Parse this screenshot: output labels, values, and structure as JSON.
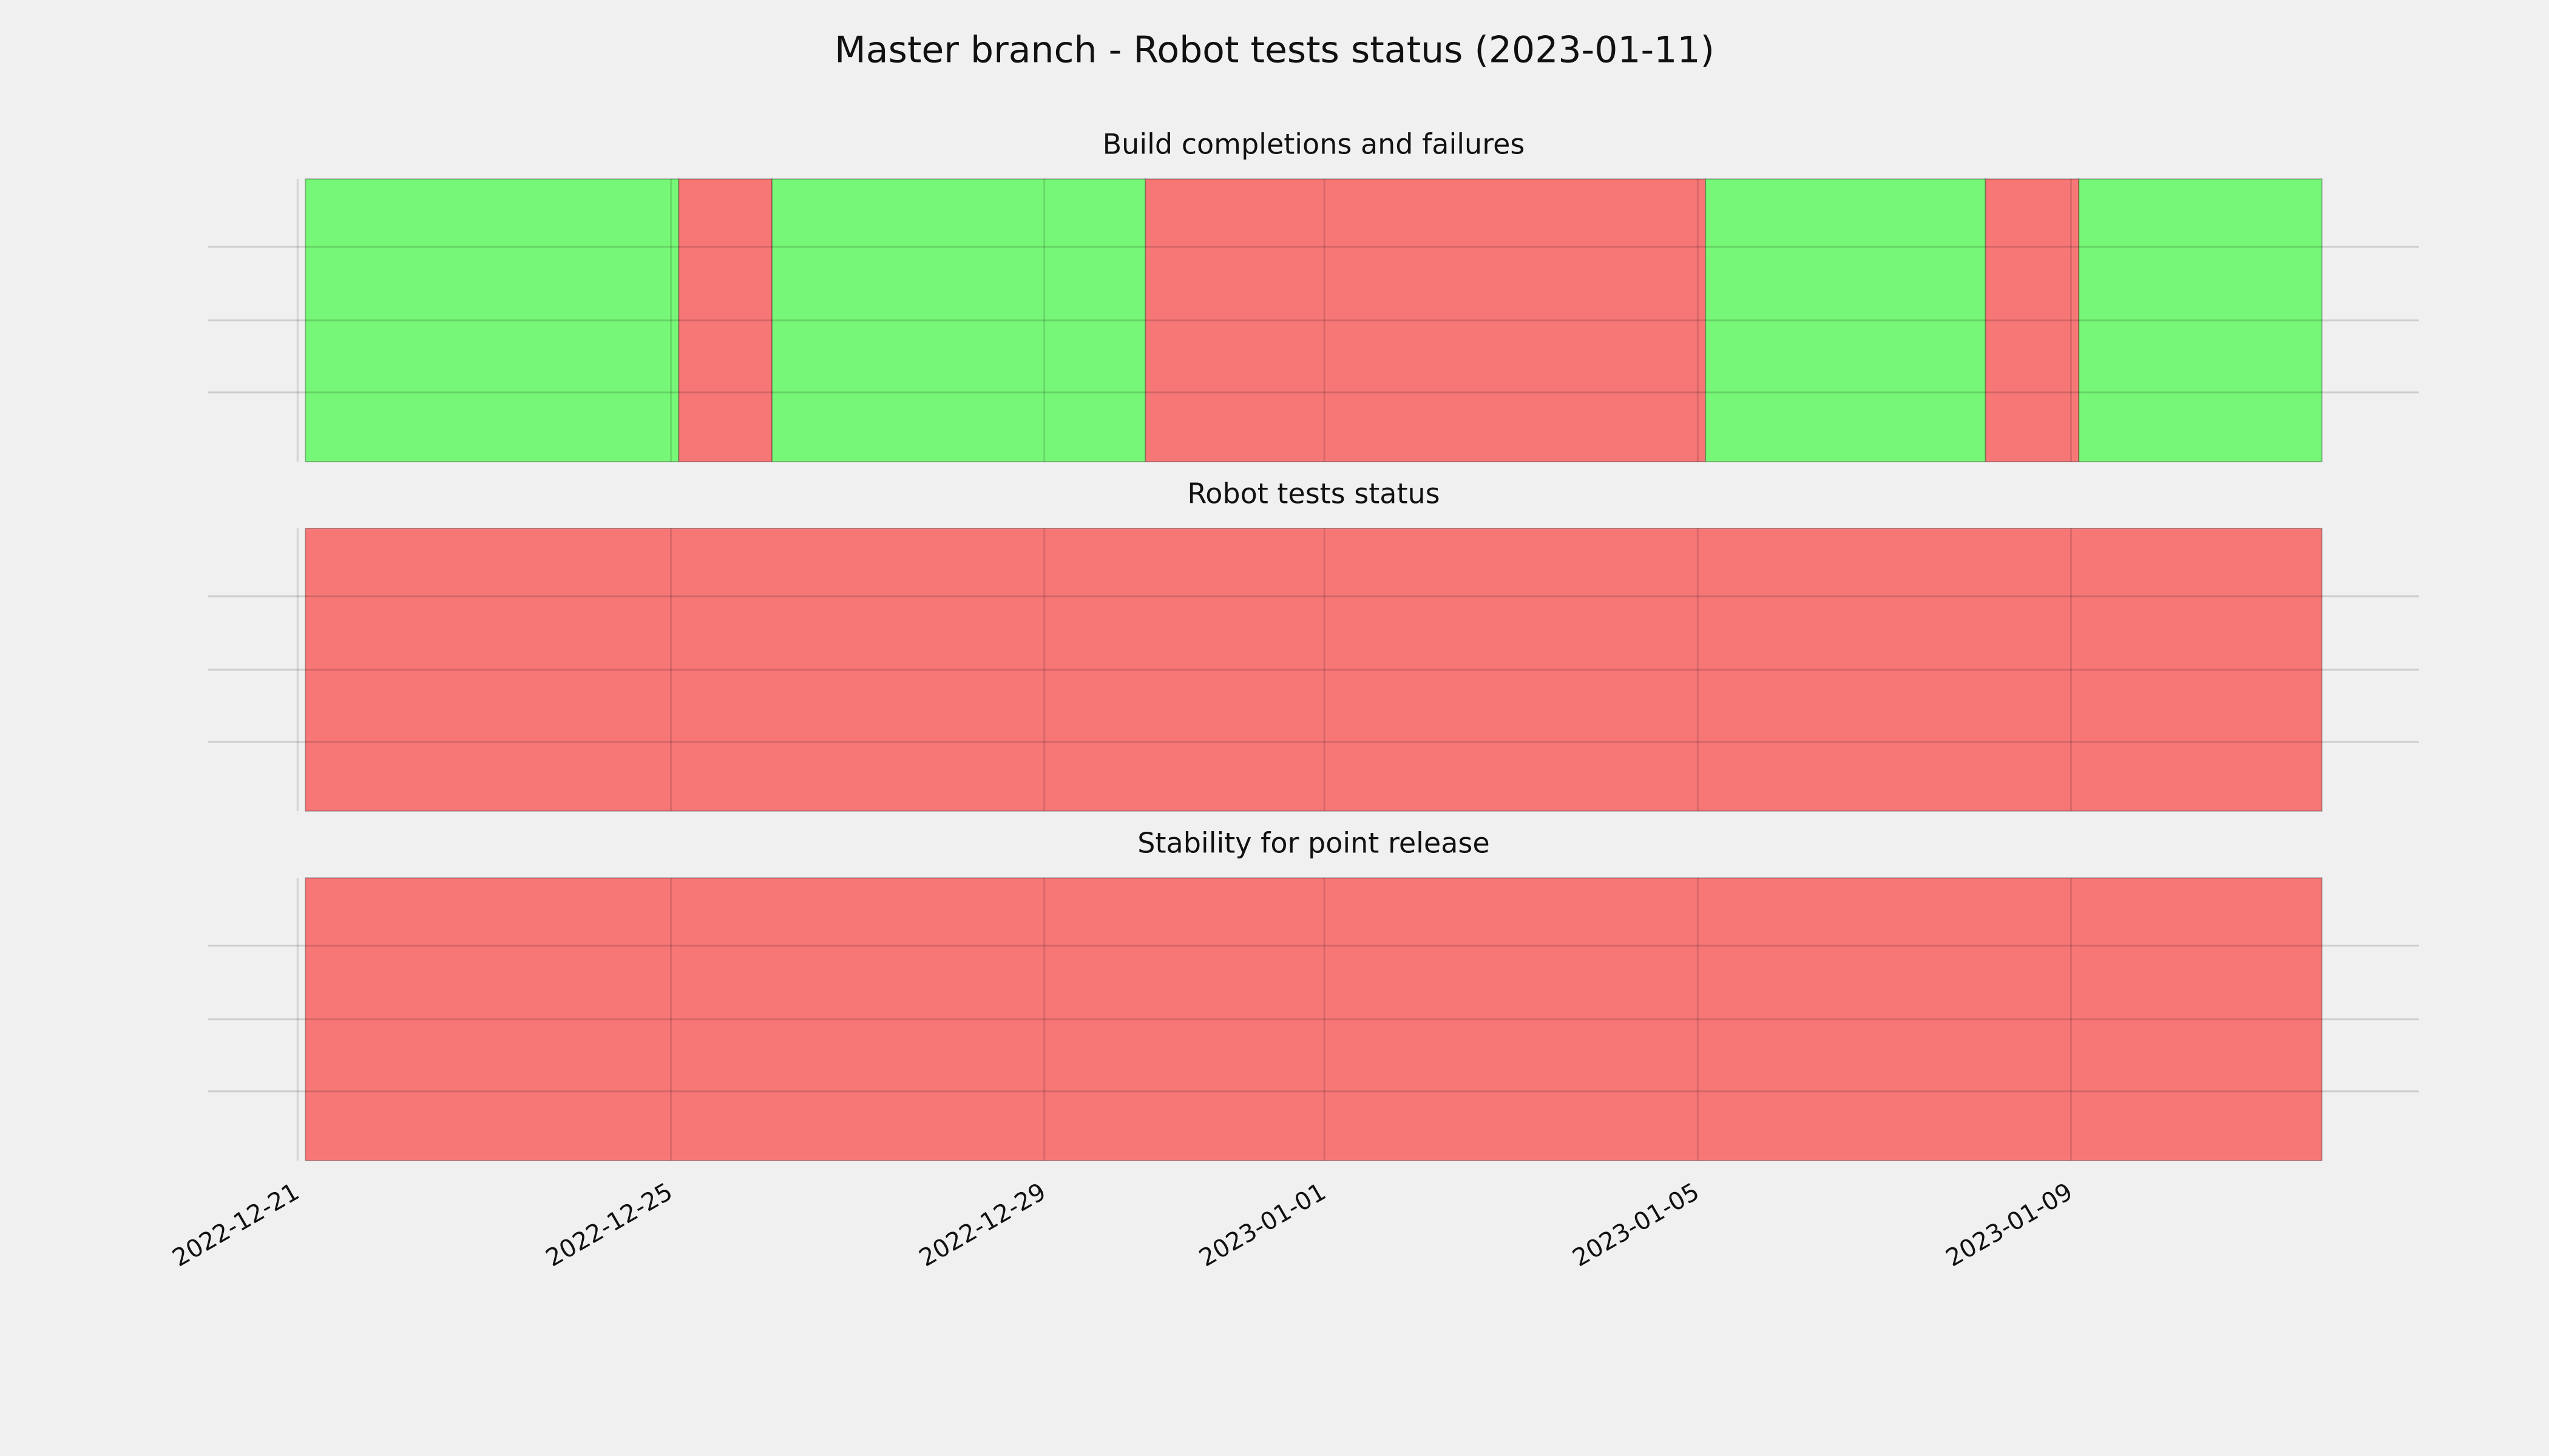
{
  "chart_data": {
    "title": "Master branch - Robot tests status (2023-01-11)",
    "xlim": [
      "2022-12-20T01:00",
      "2023-01-12T17:30"
    ],
    "xticks": [
      "2022-12-21",
      "2022-12-25",
      "2022-12-29",
      "2023-01-01",
      "2023-01-05",
      "2023-01-09"
    ],
    "grid": true,
    "panels": [
      {
        "type": "timeline",
        "title": "Build completions and failures",
        "segments": [
          {
            "start": "2022-12-21T02:00",
            "end": "2022-12-25T02:00",
            "color": "#77f777"
          },
          {
            "start": "2022-12-25T02:00",
            "end": "2022-12-26T02:00",
            "color": "#f77777"
          },
          {
            "start": "2022-12-26T02:00",
            "end": "2022-12-30T02:00",
            "color": "#77f777"
          },
          {
            "start": "2022-12-30T02:00",
            "end": "2023-01-05T02:00",
            "color": "#f77777"
          },
          {
            "start": "2023-01-05T02:00",
            "end": "2023-01-08T02:00",
            "color": "#77f777"
          },
          {
            "start": "2023-01-08T02:00",
            "end": "2023-01-09T02:00",
            "color": "#f77777"
          },
          {
            "start": "2023-01-09T02:00",
            "end": "2023-01-11T16:30",
            "color": "#77f777"
          }
        ]
      },
      {
        "type": "timeline",
        "title": "Robot tests status",
        "segments": [
          {
            "start": "2022-12-21T02:00",
            "end": "2023-01-11T16:30",
            "color": "#f77777"
          }
        ]
      },
      {
        "type": "timeline",
        "title": "Stability for point release",
        "segments": [
          {
            "start": "2022-12-21T02:00",
            "end": "2023-01-11T16:30",
            "color": "#f77777"
          }
        ]
      }
    ]
  }
}
